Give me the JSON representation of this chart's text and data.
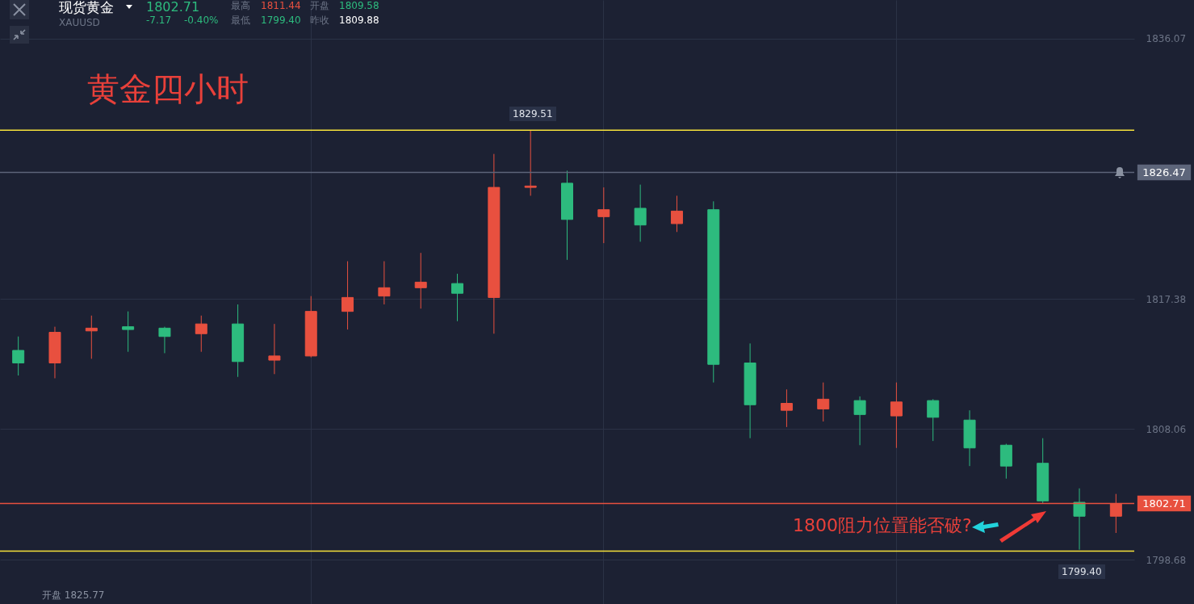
{
  "chart_data": {
    "type": "candlestick",
    "title": "黄金四小时",
    "categories": [
      null,
      null,
      null,
      null,
      null,
      null,
      null,
      null,
      null,
      null,
      null,
      null,
      null,
      null,
      null,
      null,
      null,
      null,
      null,
      null,
      null,
      null,
      null,
      null,
      null,
      null,
      null,
      null,
      null,
      null,
      null
    ],
    "ohlc": [
      [
        1813.7,
        1814.7,
        1811.9,
        1812.8
      ],
      [
        1812.8,
        1815.4,
        1811.7,
        1815.0
      ],
      [
        1815.1,
        1816.2,
        1813.1,
        1815.3
      ],
      [
        1815.4,
        1816.5,
        1813.6,
        1815.2
      ],
      [
        1815.3,
        1815.4,
        1813.5,
        1814.7
      ],
      [
        1814.9,
        1816.2,
        1813.6,
        1815.6
      ],
      [
        1815.6,
        1817.0,
        1811.8,
        1812.9
      ],
      [
        1813.0,
        1815.6,
        1812.0,
        1813.3
      ],
      [
        1813.3,
        1817.6,
        1813.2,
        1816.5
      ],
      [
        1816.5,
        1820.1,
        1815.2,
        1817.5
      ],
      [
        1817.6,
        1820.1,
        1817.0,
        1818.2
      ],
      [
        1818.2,
        1820.7,
        1816.7,
        1818.6
      ],
      [
        1818.5,
        1819.2,
        1815.8,
        1817.8
      ],
      [
        1817.5,
        1827.8,
        1814.9,
        1825.4
      ],
      [
        1825.4,
        1829.51,
        1824.8,
        1825.5
      ],
      [
        1825.7,
        1826.6,
        1820.2,
        1823.1
      ],
      [
        1823.3,
        1825.4,
        1821.4,
        1823.8
      ],
      [
        1823.9,
        1825.6,
        1821.5,
        1822.7
      ],
      [
        1822.8,
        1824.8,
        1822.2,
        1823.7
      ],
      [
        1823.8,
        1824.4,
        1811.4,
        1812.7
      ],
      [
        1812.8,
        1814.2,
        1807.4,
        1809.8
      ],
      [
        1809.4,
        1810.9,
        1808.2,
        1809.9
      ],
      [
        1809.5,
        1811.4,
        1808.6,
        1810.2
      ],
      [
        1810.1,
        1810.4,
        1806.9,
        1809.1
      ],
      [
        1809.0,
        1811.4,
        1806.7,
        1810.0
      ],
      [
        1810.1,
        1810.2,
        1807.2,
        1808.9
      ],
      [
        1808.7,
        1809.4,
        1805.4,
        1806.7
      ],
      [
        1806.9,
        1807.0,
        1804.5,
        1805.4
      ],
      [
        1805.6,
        1807.4,
        1802.7,
        1802.9
      ],
      [
        1802.8,
        1803.8,
        1799.4,
        1801.8
      ],
      [
        1801.8,
        1803.4,
        1800.6,
        1802.71
      ]
    ],
    "colors": [
      "#2dbb7e",
      "#e8503f",
      "#e8503f",
      "#2dbb7e",
      "#2dbb7e",
      "#e8503f",
      "#2dbb7e",
      "#e8503f",
      "#e8503f",
      "#e8503f",
      "#e8503f",
      "#e8503f",
      "#2dbb7e",
      "#e8503f",
      "#e8503f",
      "#2dbb7e",
      "#e8503f",
      "#2dbb7e",
      "#e8503f",
      "#2dbb7e",
      "#2dbb7e",
      "#e8503f",
      "#e8503f",
      "#2dbb7e",
      "#e8503f",
      "#2dbb7e",
      "#2dbb7e",
      "#2dbb7e",
      "#2dbb7e",
      "#2dbb7e",
      "#e8503f"
    ],
    "ylim": [
      1795.5,
      1838.85
    ],
    "yticks": [
      1798.68,
      1808.06,
      1817.38,
      1836.07
    ],
    "tick_labels": "y",
    "grid": true,
    "ref_lines": [
      {
        "axis": "y",
        "value": 1829.5,
        "label": null,
        "color": "#f7e33b"
      },
      {
        "axis": "y",
        "value": 1799.3,
        "label": null,
        "color": "#f7e33b"
      },
      {
        "axis": "y",
        "value": 1826.47,
        "label": "1826.47",
        "color": "#5d657a"
      },
      {
        "axis": "y",
        "value": 1802.71,
        "label": "1802.71",
        "color": "#e8503f"
      }
    ],
    "annotations": [
      "现货黄金",
      "XAUUSD",
      "1802.71",
      "-7.17",
      "-0.40%",
      "最高",
      "1811.44",
      "开盘",
      "1809.58",
      "最低",
      "1799.40",
      "昨收",
      "1809.88",
      "1800阻力位置能否破?",
      "开盘 1825.77",
      "1829.51",
      "1799.40"
    ]
  }
}
